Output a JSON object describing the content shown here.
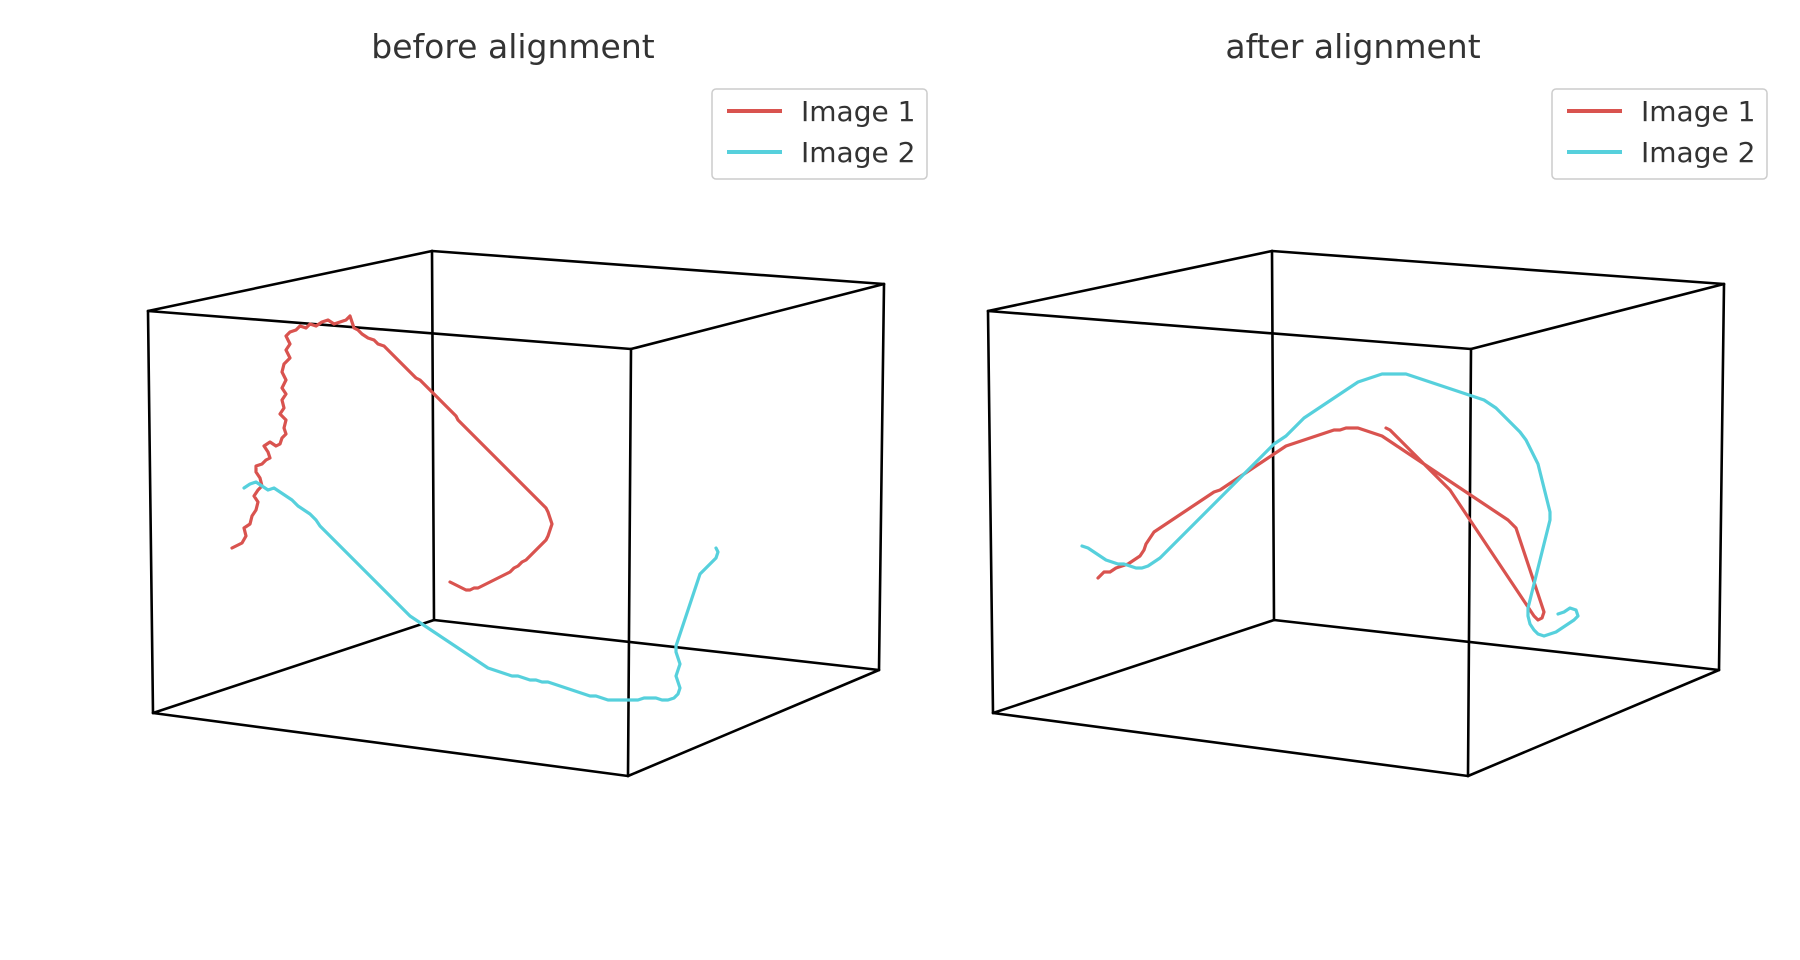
{
  "colors": {
    "image1": "#d9534f",
    "image2": "#56d0dc"
  },
  "chart_data": [
    {
      "type": "line",
      "projection": "3d",
      "title": "before alignment",
      "grid": false,
      "axes_visible": false,
      "legend_position": "top-right",
      "series": [
        {
          "name": "Image 1",
          "color": "#d9534f",
          "description_path": [
            [
              0.12,
              -0.05
            ],
            [
              0.18,
              0.1
            ],
            [
              0.1,
              0.28
            ],
            [
              0.15,
              0.36
            ],
            [
              0.2,
              0.4
            ],
            [
              0.14,
              0.55
            ],
            [
              0.1,
              0.7
            ],
            [
              0.12,
              0.8
            ],
            [
              0.22,
              0.86
            ],
            [
              0.35,
              0.87
            ],
            [
              0.45,
              0.9
            ],
            [
              0.55,
              0.93
            ],
            [
              0.6,
              0.95
            ],
            [
              0.66,
              0.98
            ],
            [
              0.63,
              0.87
            ],
            [
              0.64,
              0.72
            ],
            [
              0.7,
              0.6
            ],
            [
              0.76,
              0.52
            ],
            [
              0.8,
              0.45
            ],
            [
              0.78,
              0.35
            ],
            [
              0.8,
              0.25
            ],
            [
              0.78,
              0.12
            ],
            [
              0.73,
              0.1
            ],
            [
              0.62,
              0.1
            ],
            [
              0.57,
              0.22
            ],
            [
              0.55,
              0.32
            ],
            [
              0.5,
              0.4
            ],
            [
              0.45,
              0.3
            ],
            [
              0.4,
              0.25
            ]
          ]
        },
        {
          "name": "Image 2",
          "color": "#56d0dc",
          "description_path": [
            [
              -0.05,
              0.1
            ],
            [
              0.05,
              0.02
            ],
            [
              0.15,
              0.02
            ],
            [
              0.22,
              0.08
            ],
            [
              0.3,
              0.15
            ],
            [
              0.2,
              0.25
            ],
            [
              0.1,
              0.4
            ],
            [
              0.05,
              0.5
            ],
            [
              0.0,
              0.55
            ],
            [
              -0.02,
              0.6
            ],
            [
              0.05,
              0.65
            ],
            [
              0.15,
              0.62
            ],
            [
              0.25,
              0.55
            ],
            [
              0.35,
              0.45
            ],
            [
              0.45,
              0.35
            ],
            [
              0.55,
              0.2
            ],
            [
              0.62,
              0.08
            ],
            [
              0.7,
              0.0
            ],
            [
              0.8,
              -0.08
            ],
            [
              0.9,
              -0.12
            ],
            [
              0.92,
              0.0
            ],
            [
              0.9,
              0.12
            ],
            [
              0.92,
              0.25
            ],
            [
              0.98,
              0.3
            ],
            [
              1.02,
              0.3
            ],
            [
              1.0,
              0.38
            ]
          ]
        }
      ]
    },
    {
      "type": "line",
      "projection": "3d",
      "title": "after alignment",
      "grid": false,
      "axes_visible": false,
      "legend_position": "top-right",
      "series": [
        {
          "name": "Image 1",
          "color": "#d9534f",
          "description_path": [
            [
              0.05,
              0.15
            ],
            [
              0.15,
              0.2
            ],
            [
              0.25,
              0.3
            ],
            [
              0.32,
              0.38
            ],
            [
              0.38,
              0.45
            ],
            [
              0.45,
              0.55
            ],
            [
              0.52,
              0.62
            ],
            [
              0.6,
              0.72
            ],
            [
              0.68,
              0.78
            ],
            [
              0.76,
              0.8
            ],
            [
              0.82,
              0.72
            ],
            [
              0.88,
              0.6
            ],
            [
              0.9,
              0.48
            ],
            [
              0.94,
              0.4
            ],
            [
              0.98,
              0.3
            ],
            [
              1.02,
              0.15
            ],
            [
              1.04,
              0.05
            ],
            [
              1.0,
              0.1
            ],
            [
              0.96,
              0.22
            ],
            [
              0.96,
              0.35
            ],
            [
              0.92,
              0.45
            ],
            [
              0.88,
              0.52
            ],
            [
              0.82,
              0.5
            ],
            [
              0.75,
              0.45
            ],
            [
              0.68,
              0.42
            ],
            [
              0.62,
              0.45
            ],
            [
              0.55,
              0.55
            ],
            [
              0.48,
              0.62
            ],
            [
              0.4,
              0.6
            ],
            [
              0.32,
              0.52
            ],
            [
              0.26,
              0.45
            ]
          ]
        },
        {
          "name": "Image 2",
          "color": "#56d0dc",
          "description_path": [
            [
              0.02,
              0.2
            ],
            [
              0.1,
              0.28
            ],
            [
              0.18,
              0.3
            ],
            [
              0.25,
              0.38
            ],
            [
              0.32,
              0.48
            ],
            [
              0.38,
              0.6
            ],
            [
              0.45,
              0.72
            ],
            [
              0.52,
              0.8
            ],
            [
              0.58,
              0.85
            ],
            [
              0.65,
              0.88
            ],
            [
              0.72,
              0.88
            ],
            [
              0.8,
              0.85
            ],
            [
              0.88,
              0.8
            ],
            [
              0.95,
              0.72
            ],
            [
              1.02,
              0.6
            ],
            [
              1.05,
              0.48
            ],
            [
              1.08,
              0.38
            ],
            [
              1.1,
              0.28
            ],
            [
              1.08,
              0.15
            ],
            [
              1.04,
              0.08
            ],
            [
              1.08,
              0.05
            ],
            [
              1.12,
              0.08
            ],
            [
              1.05,
              0.12
            ],
            [
              1.0,
              0.2
            ],
            [
              0.98,
              0.35
            ],
            [
              0.95,
              0.5
            ],
            [
              0.92,
              0.58
            ],
            [
              0.85,
              0.62
            ],
            [
              0.78,
              0.65
            ],
            [
              0.7,
              0.64
            ],
            [
              0.62,
              0.62
            ],
            [
              0.55,
              0.6
            ],
            [
              0.5,
              0.62
            ],
            [
              0.45,
              0.6
            ],
            [
              0.4,
              0.62
            ],
            [
              0.35,
              0.55
            ],
            [
              0.28,
              0.42
            ],
            [
              0.2,
              0.3
            ]
          ]
        }
      ]
    }
  ]
}
